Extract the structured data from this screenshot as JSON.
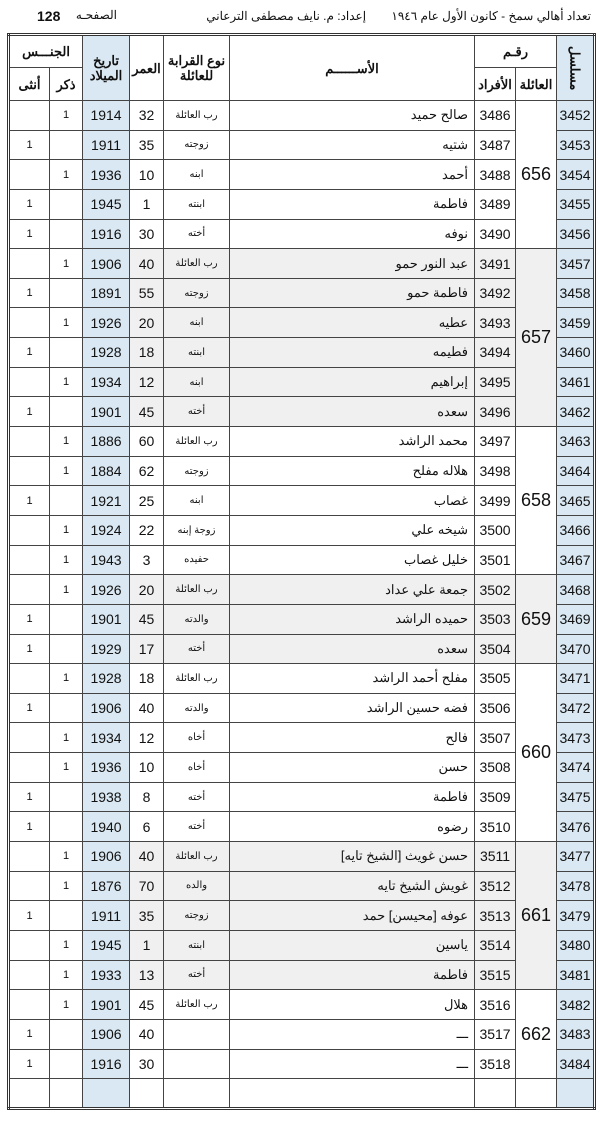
{
  "title": {
    "page_label": "الصفحـه",
    "page_number": "128",
    "census": "تعداد أهالي سمخ - كانون الأول عام ١٩٤٦",
    "author": "إعداد: م. نايف مصطفى الترعاني"
  },
  "headers": {
    "serial": "مسلسل",
    "number": "رقـم",
    "family": "العائلة",
    "members": "الأفراد",
    "name": "الأســــــم",
    "relation": "نوع القرابة للعائلة",
    "age": "العمر",
    "birth": "تاريخ الميلاد",
    "sex": "الجنـــس",
    "male": "ذكر",
    "female": "أنثى"
  },
  "colors": {
    "blue_column": "#d9e8f2",
    "shaded_family": "#f0f0f0"
  },
  "families": [
    {
      "family": "656",
      "rows": [
        [
          "3452",
          "3486",
          "صالح حميد",
          "رب العائلة",
          "32",
          "1914",
          "1",
          ""
        ],
        [
          "3453",
          "3487",
          "شتيه",
          "زوجته",
          "35",
          "1911",
          "",
          "1"
        ],
        [
          "3454",
          "3488",
          "أحمد",
          "ابنه",
          "10",
          "1936",
          "1",
          ""
        ],
        [
          "3455",
          "3489",
          "فاطمة",
          "ابنته",
          "1",
          "1945",
          "",
          "1"
        ],
        [
          "3456",
          "3490",
          "نوفه",
          "أخته",
          "30",
          "1916",
          "",
          "1"
        ]
      ]
    },
    {
      "family": "657",
      "rows": [
        [
          "3457",
          "3491",
          "عبد النور حمو",
          "رب العائلة",
          "40",
          "1906",
          "1",
          ""
        ],
        [
          "3458",
          "3492",
          "فاطمة حمو",
          "زوجته",
          "55",
          "1891",
          "",
          "1"
        ],
        [
          "3459",
          "3493",
          "عطيه",
          "ابنه",
          "20",
          "1926",
          "1",
          ""
        ],
        [
          "3460",
          "3494",
          "فطيمه",
          "ابنته",
          "18",
          "1928",
          "",
          "1"
        ],
        [
          "3461",
          "3495",
          "إبراهيم",
          "ابنه",
          "12",
          "1934",
          "1",
          ""
        ],
        [
          "3462",
          "3496",
          "سعده",
          "أخته",
          "45",
          "1901",
          "",
          "1"
        ]
      ]
    },
    {
      "family": "658",
      "rows": [
        [
          "3463",
          "3497",
          "محمد الراشد",
          "رب العائلة",
          "60",
          "1886",
          "1",
          ""
        ],
        [
          "3464",
          "3498",
          "هلاله مفلح",
          "زوجته",
          "62",
          "1884",
          "1",
          ""
        ],
        [
          "3465",
          "3499",
          "غصاب",
          "ابنه",
          "25",
          "1921",
          "",
          "1"
        ],
        [
          "3466",
          "3500",
          "شيخه علي",
          "زوجة إبنه",
          "22",
          "1924",
          "1",
          ""
        ],
        [
          "3467",
          "3501",
          "خليل غصاب",
          "حفيده",
          "3",
          "1943",
          "1",
          ""
        ]
      ]
    },
    {
      "family": "659",
      "rows": [
        [
          "3468",
          "3502",
          "جمعة علي عداد",
          "رب العائلة",
          "20",
          "1926",
          "1",
          ""
        ],
        [
          "3469",
          "3503",
          "حميده الراشد",
          "والدته",
          "45",
          "1901",
          "",
          "1"
        ],
        [
          "3470",
          "3504",
          "سعده",
          "أخته",
          "17",
          "1929",
          "",
          "1"
        ]
      ]
    },
    {
      "family": "660",
      "rows": [
        [
          "3471",
          "3505",
          "مفلح أحمد الراشد",
          "رب العائلة",
          "18",
          "1928",
          "1",
          ""
        ],
        [
          "3472",
          "3506",
          "فضه حسين الراشد",
          "والدته",
          "40",
          "1906",
          "",
          "1"
        ],
        [
          "3473",
          "3507",
          "فالح",
          "أخاه",
          "12",
          "1934",
          "1",
          ""
        ],
        [
          "3474",
          "3508",
          "حسن",
          "أخاه",
          "10",
          "1936",
          "1",
          ""
        ],
        [
          "3475",
          "3509",
          "فاطمة",
          "أخته",
          "8",
          "1938",
          "",
          "1"
        ],
        [
          "3476",
          "3510",
          "رضوه",
          "أخته",
          "6",
          "1940",
          "",
          "1"
        ]
      ]
    },
    {
      "family": "661",
      "rows": [
        [
          "3477",
          "3511",
          "حسن غويث [الشيخ تايه]",
          "رب العائلة",
          "40",
          "1906",
          "1",
          ""
        ],
        [
          "3478",
          "3512",
          "غويش الشيخ تايه",
          "والده",
          "70",
          "1876",
          "1",
          ""
        ],
        [
          "3479",
          "3513",
          "عوفه [محيسن] حمد",
          "زوجته",
          "35",
          "1911",
          "",
          "1"
        ],
        [
          "3480",
          "3514",
          "ياسين",
          "ابنته",
          "1",
          "1945",
          "1",
          ""
        ],
        [
          "3481",
          "3515",
          "فاطمة",
          "أخته",
          "13",
          "1933",
          "1",
          ""
        ]
      ]
    },
    {
      "family": "662",
      "rows": [
        [
          "3482",
          "3516",
          "هلال",
          "رب العائلة",
          "45",
          "1901",
          "1",
          ""
        ],
        [
          "3483",
          "3517",
          "ـــ",
          "",
          "40",
          "1906",
          "",
          "1"
        ],
        [
          "3484",
          "3518",
          "ـــ",
          "",
          "30",
          "1916",
          "",
          "1"
        ]
      ]
    }
  ]
}
